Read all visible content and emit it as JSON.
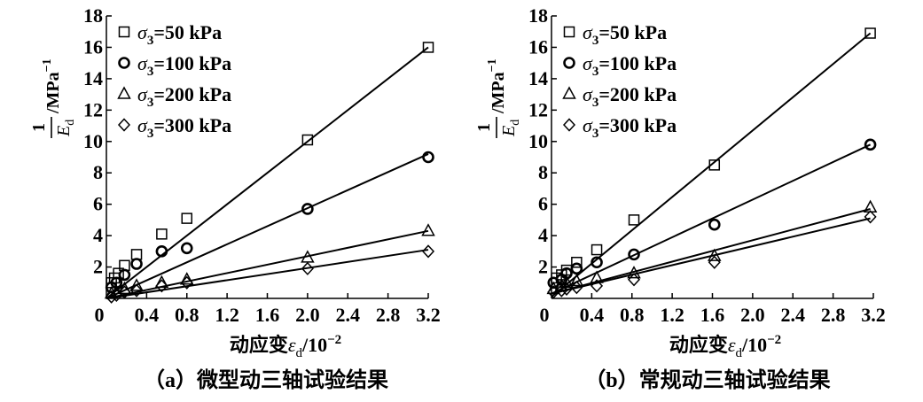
{
  "chart_data": [
    {
      "type": "scatter",
      "caption": "（a）微型动三轴试验结果",
      "ylabel": {
        "numerator": "1",
        "base": "E",
        "sub": "d",
        "unit": "/MPa",
        "exp": "−1"
      },
      "xlabel": {
        "prefix": "动应变",
        "sym": "ε",
        "sub": "d",
        "unit": "/10",
        "exp": "−2"
      },
      "xlim": [
        0,
        3.2
      ],
      "ylim": [
        0,
        18
      ],
      "xticks": [
        0,
        0.4,
        0.8,
        1.2,
        1.6,
        2.0,
        2.4,
        2.8,
        3.2
      ],
      "xtick_labels": [
        "0",
        "0.4",
        "0.8",
        "1.2",
        "1.6",
        "2.0",
        "2.4",
        "2.8",
        "3.2"
      ],
      "yticks": [
        2,
        4,
        6,
        8,
        10,
        12,
        14,
        16,
        18
      ],
      "ytick_labels": [
        "2",
        "4",
        "6",
        "8",
        "10",
        "12",
        "14",
        "16",
        "18"
      ],
      "legend_position": "top-left",
      "series": [
        {
          "name": "σ3=50 kPa",
          "sym": "σ",
          "sub": "3",
          "rest": "=50 kPa",
          "marker": "square",
          "x": [
            0.05,
            0.08,
            0.12,
            0.18,
            0.3,
            0.55,
            0.8,
            2.0,
            3.2
          ],
          "y": [
            1.0,
            1.3,
            1.6,
            2.1,
            2.8,
            4.1,
            5.1,
            10.1,
            16.0
          ],
          "fit": [
            [
              0,
              0
            ],
            [
              3.2,
              16.0
            ]
          ]
        },
        {
          "name": "σ3=100 kPa",
          "sym": "σ",
          "sub": "3",
          "rest": "=100 kPa",
          "marker": "circle",
          "x": [
            0.05,
            0.1,
            0.18,
            0.3,
            0.55,
            0.8,
            2.0,
            3.2
          ],
          "y": [
            0.7,
            1.0,
            1.5,
            2.2,
            3.0,
            3.2,
            5.7,
            9.0
          ],
          "fit": [
            [
              0,
              0
            ],
            [
              3.2,
              9.2
            ]
          ]
        },
        {
          "name": "σ3=200 kPa",
          "sym": "σ",
          "sub": "3",
          "rest": "=200 kPa",
          "marker": "triangle",
          "x": [
            0.05,
            0.1,
            0.18,
            0.3,
            0.55,
            0.8,
            2.0,
            3.2
          ],
          "y": [
            0.3,
            0.4,
            0.6,
            0.8,
            1.0,
            1.2,
            2.6,
            4.3
          ],
          "fit": [
            [
              0,
              0
            ],
            [
              3.2,
              4.3
            ]
          ]
        },
        {
          "name": "σ3=300 kPa",
          "sym": "σ",
          "sub": "3",
          "rest": "=300 kPa",
          "marker": "diamond",
          "x": [
            0.05,
            0.1,
            0.18,
            0.3,
            0.55,
            0.8,
            2.0,
            3.2
          ],
          "y": [
            0.1,
            0.2,
            0.4,
            0.5,
            0.8,
            1.0,
            1.9,
            3.0
          ],
          "fit": [
            [
              0,
              0
            ],
            [
              3.2,
              3.1
            ]
          ]
        }
      ]
    },
    {
      "type": "scatter",
      "caption": "（b）常规动三轴试验结果",
      "ylabel": {
        "numerator": "1",
        "base": "E",
        "sub": "d",
        "unit": "/MPa",
        "exp": "−1"
      },
      "xlabel": {
        "prefix": "动应变",
        "sym": "ε",
        "sub": "d",
        "unit": "/10",
        "exp": "−2"
      },
      "xlim": [
        0,
        3.2
      ],
      "ylim": [
        0,
        18
      ],
      "xticks": [
        0,
        0.4,
        0.8,
        1.2,
        1.6,
        2.0,
        2.4,
        2.8,
        3.2
      ],
      "xtick_labels": [
        "0",
        "0.4",
        "0.8",
        "1.2",
        "1.6",
        "2.0",
        "2.4",
        "2.8",
        "3.2"
      ],
      "yticks": [
        2,
        4,
        6,
        8,
        10,
        12,
        14,
        16,
        18
      ],
      "ytick_labels": [
        "2",
        "4",
        "6",
        "8",
        "10",
        "12",
        "14",
        "16",
        "18"
      ],
      "legend_position": "top-left",
      "series": [
        {
          "name": "σ3=50 kPa",
          "sym": "σ",
          "sub": "3",
          "rest": "=50 kPa",
          "marker": "square",
          "x": [
            0.05,
            0.1,
            0.15,
            0.25,
            0.45,
            0.82,
            1.62,
            3.17
          ],
          "y": [
            1.3,
            1.5,
            1.8,
            2.3,
            3.1,
            5.0,
            8.5,
            16.9
          ],
          "fit": [
            [
              0,
              0.1
            ],
            [
              3.17,
              16.9
            ]
          ]
        },
        {
          "name": "σ3=100 kPa",
          "sym": "σ",
          "sub": "3",
          "rest": "=100 kPa",
          "marker": "circle",
          "x": [
            0.02,
            0.1,
            0.15,
            0.25,
            0.45,
            0.82,
            1.62,
            3.17
          ],
          "y": [
            1.0,
            1.2,
            1.6,
            1.9,
            2.3,
            2.8,
            4.7,
            9.8
          ],
          "fit": [
            [
              0,
              0.3
            ],
            [
              3.17,
              9.8
            ]
          ]
        },
        {
          "name": "σ3=200 kPa",
          "sym": "σ",
          "sub": "3",
          "rest": "=200 kPa",
          "marker": "triangle",
          "x": [
            0.02,
            0.1,
            0.15,
            0.25,
            0.45,
            0.82,
            1.62,
            3.17
          ],
          "y": [
            0.6,
            0.8,
            1.0,
            1.1,
            1.3,
            1.6,
            2.7,
            5.8
          ],
          "fit": [
            [
              0,
              0.3
            ],
            [
              3.17,
              5.7
            ]
          ]
        },
        {
          "name": "σ3=300 kPa",
          "sym": "σ",
          "sub": "3",
          "rest": "=300 kPa",
          "marker": "diamond",
          "x": [
            0.02,
            0.1,
            0.15,
            0.25,
            0.45,
            0.82,
            1.62,
            3.17
          ],
          "y": [
            0.4,
            0.5,
            0.6,
            0.7,
            0.8,
            1.2,
            2.3,
            5.2
          ],
          "fit": [
            [
              0,
              0.3
            ],
            [
              3.17,
              5.1
            ]
          ]
        }
      ]
    }
  ]
}
